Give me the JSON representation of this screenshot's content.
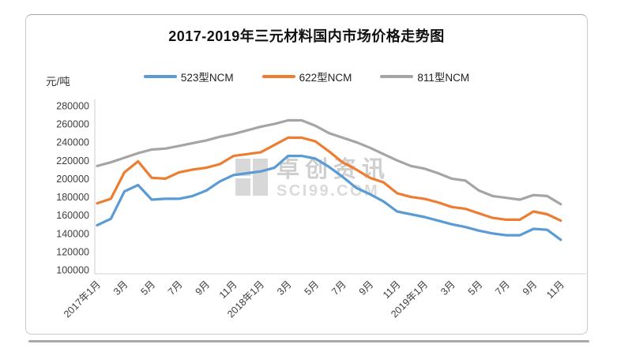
{
  "page": {
    "watermark": {
      "logo": "sci-grid-logo",
      "line1": "卓创资讯",
      "line2": "SCI99.COM"
    }
  },
  "chart_data": {
    "type": "line",
    "title": "2017-2019年三元材料国内市场价格走势图",
    "y_unit": "元/吨",
    "ylabel": "元/吨",
    "xlabel": "",
    "ylim": [
      100000,
      280000
    ],
    "grid": false,
    "legend_position": "top",
    "y_ticks": [
      280000,
      260000,
      240000,
      220000,
      200000,
      180000,
      160000,
      140000,
      120000,
      100000
    ],
    "x_tick_labels": [
      "2017年1月",
      "3月",
      "5月",
      "7月",
      "9月",
      "11月",
      "2018年1月",
      "3月",
      "5月",
      "7月",
      "9月",
      "11月",
      "2019年1月",
      "3月",
      "5月",
      "7月",
      "9月",
      "11月"
    ],
    "x_tick_month_index": [
      1,
      3,
      5,
      7,
      9,
      11,
      13,
      15,
      17,
      19,
      21,
      23,
      25,
      27,
      29,
      31,
      33,
      35
    ],
    "months_total": 35,
    "x_period": "2017-01 to 2019-11, monthly",
    "series": [
      {
        "name": "523型NCM",
        "color": "#5B9BD5",
        "values": [
          149000,
          156000,
          186000,
          193000,
          177000,
          178000,
          178000,
          181000,
          187000,
          197000,
          204000,
          206000,
          208000,
          212000,
          225000,
          225000,
          222000,
          213000,
          202000,
          190000,
          183000,
          175000,
          164000,
          161000,
          158000,
          154000,
          150000,
          147000,
          143000,
          140000,
          138000,
          138000,
          145000,
          144000,
          133000
        ]
      },
      {
        "name": "622型NCM",
        "color": "#ED7D31",
        "values": [
          173000,
          178000,
          207000,
          219000,
          201000,
          200000,
          207000,
          210000,
          212000,
          216000,
          225000,
          227000,
          229000,
          237000,
          245000,
          245000,
          241000,
          230000,
          218000,
          210000,
          201000,
          196000,
          184000,
          180000,
          178000,
          174000,
          169000,
          167000,
          162000,
          157000,
          155000,
          155000,
          164000,
          161000,
          154000
        ]
      },
      {
        "name": "811型NCM",
        "color": "#A5A5A5",
        "values": [
          214000,
          218000,
          223000,
          228000,
          232000,
          233000,
          236000,
          239000,
          242000,
          246000,
          249000,
          253000,
          257000,
          260000,
          264000,
          264000,
          258000,
          250000,
          245000,
          240000,
          234000,
          227000,
          220000,
          214000,
          211000,
          206000,
          200000,
          198000,
          187000,
          181000,
          179000,
          177000,
          182000,
          181000,
          172000
        ]
      }
    ],
    "axis_color": "#d9d9d9"
  }
}
